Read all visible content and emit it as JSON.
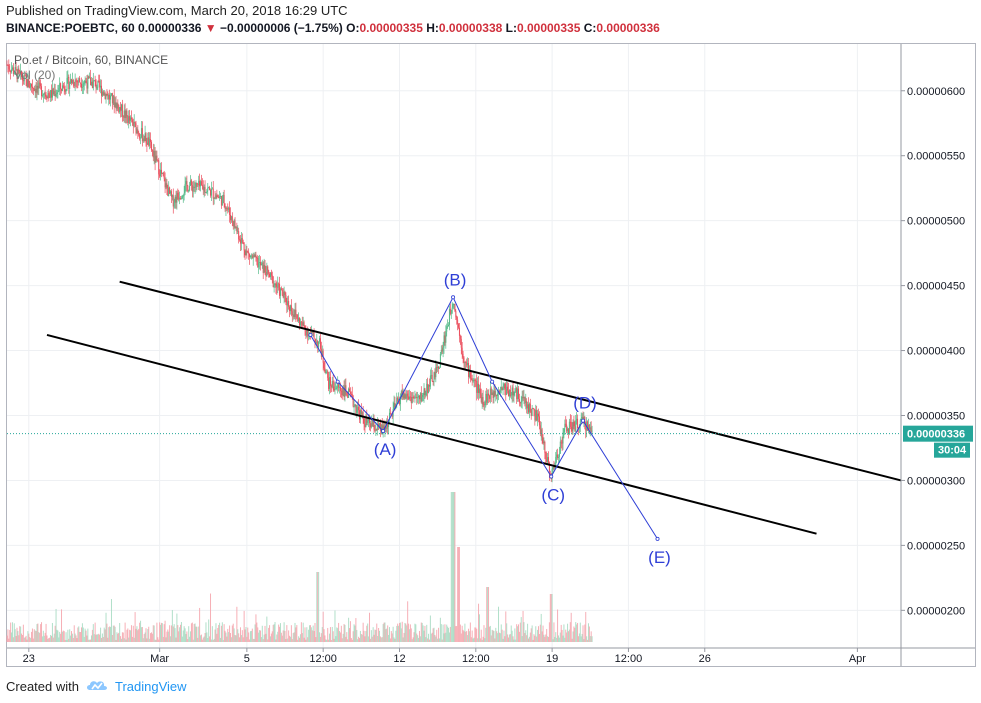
{
  "header": {
    "published": "Published on TradingView.com, March 20, 2018 16:29 UTC",
    "symbol": "BINANCE:POEBTC, 60",
    "last": "0.00000336",
    "change_arrow": "▼",
    "change": "−0.00000006 (−1.75%)",
    "o_label": "O:",
    "o": "0.00000335",
    "h_label": "H:",
    "h": "0.00000338",
    "l_label": "L:",
    "l": "0.00000335",
    "c_label": "C:",
    "c": "0.00000336"
  },
  "legend": {
    "series": "Po.et / Bitcoin, 60, BINANCE",
    "volume": "Vol (20)"
  },
  "colors": {
    "up": "#53b987",
    "down": "#eb4d5c",
    "wave": "#2f3fd6",
    "channel": "#000000",
    "price_label_bg": "#26a69a"
  },
  "price_axis": {
    "current_price": "0.00000336",
    "countdown": "30:04"
  },
  "footer": {
    "created_with": "Created with",
    "brand": "TradingView",
    "logo_icon": "tradingview-cloud-icon"
  },
  "chart_data": {
    "type": "candlestick",
    "y_ticks": [
      "0.00000600",
      "0.00000550",
      "0.00000500",
      "0.00000450",
      "0.00000400",
      "0.00000350",
      "0.00000300",
      "0.00000250",
      "0.00000200"
    ],
    "y_tick_values": [
      600,
      550,
      500,
      450,
      400,
      350,
      300,
      250,
      200
    ],
    "y_unit_scale": 1e-08,
    "ylim": [
      171,
      636
    ],
    "x_ticks": [
      "23",
      "Mar",
      "5",
      "12:00",
      "12",
      "12:00",
      "19",
      "12:00",
      "26",
      "Apr"
    ],
    "x_tick_hours": [
      0,
      144,
      240,
      324,
      408,
      492,
      576,
      660,
      744,
      912
    ],
    "xlim": [
      -24,
      960
    ],
    "price_path": [
      [
        -24,
        620
      ],
      [
        0,
        605
      ],
      [
        24,
        597
      ],
      [
        48,
        608
      ],
      [
        72,
        606
      ],
      [
        96,
        590
      ],
      [
        112,
        576
      ],
      [
        132,
        560
      ],
      [
        150,
        528
      ],
      [
        158,
        515
      ],
      [
        175,
        527
      ],
      [
        195,
        525
      ],
      [
        215,
        515
      ],
      [
        240,
        475
      ],
      [
        260,
        462
      ],
      [
        282,
        440
      ],
      [
        300,
        420
      ],
      [
        320,
        405
      ],
      [
        330,
        375
      ],
      [
        350,
        368
      ],
      [
        370,
        345
      ],
      [
        390,
        338
      ],
      [
        410,
        366
      ],
      [
        430,
        362
      ],
      [
        450,
        385
      ],
      [
        467,
        440
      ],
      [
        480,
        390
      ],
      [
        500,
        362
      ],
      [
        520,
        372
      ],
      [
        540,
        365
      ],
      [
        560,
        348
      ],
      [
        575,
        303
      ],
      [
        590,
        340
      ],
      [
        600,
        342
      ],
      [
        610,
        345
      ],
      [
        620,
        338
      ]
    ],
    "wave_points": [
      {
        "label": "(A)",
        "hour": 390,
        "price": 338
      },
      {
        "label": "(B)",
        "hour": 467,
        "price": 441
      },
      {
        "label": "(C)",
        "hour": 575,
        "price": 303
      },
      {
        "label": "(D)",
        "hour": 610,
        "price": 346
      },
      {
        "label": "(E)",
        "hour": 692,
        "price": 255
      }
    ],
    "wave_path": [
      [
        310,
        412
      ],
      [
        340,
        376
      ],
      [
        390,
        338
      ],
      [
        467,
        441
      ],
      [
        510,
        376
      ],
      [
        575,
        303
      ],
      [
        610,
        346
      ],
      [
        692,
        255
      ]
    ],
    "channel_lines": [
      {
        "name": "upper",
        "from": [
          100,
          453
        ],
        "to": [
          960,
          300
        ]
      },
      {
        "name": "lower",
        "from": [
          20,
          412
        ],
        "to": [
          867,
          259
        ]
      }
    ],
    "current_price": 336,
    "volume_note": "histogram with spikes near hour 467"
  }
}
